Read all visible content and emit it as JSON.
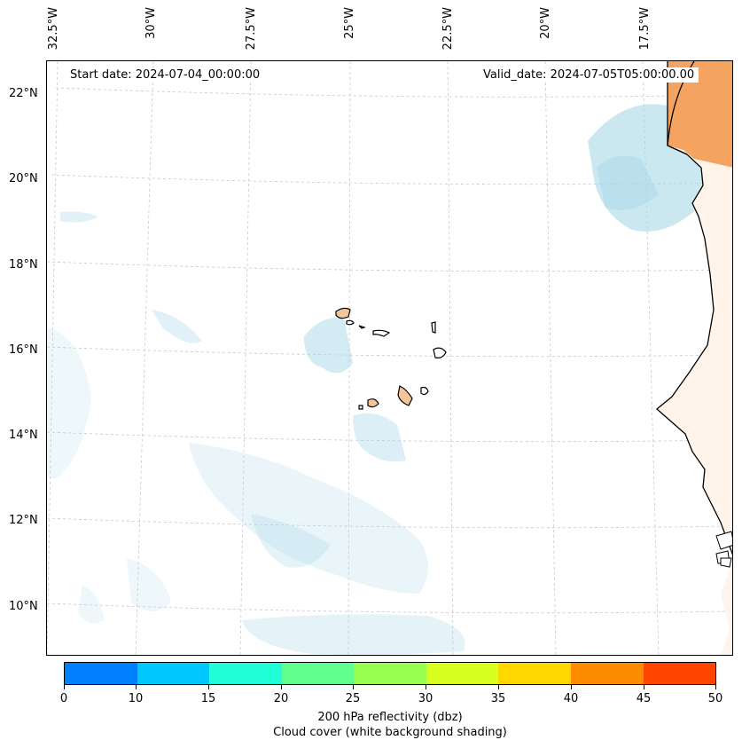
{
  "map": {
    "start_date": "Start date: 2024-07-04_00:00:00",
    "valid_date": "Valid_date: 2024-07-05T05:00:00.00",
    "lon_labels": [
      "32.5°W",
      "30°W",
      "27.5°W",
      "25°W",
      "22.5°W",
      "20°W",
      "17.5°W"
    ],
    "lat_labels": [
      "22°N",
      "20°N",
      "18°N",
      "16°N",
      "14°N",
      "12°N",
      "10°N"
    ],
    "gridlines": true,
    "coast_color": "#000000",
    "land_fill": "#f4a460",
    "cloud_color": "#a8d8e8"
  },
  "colorbar": {
    "title": "200 hPa reflectivity (dbz)",
    "subtitle": "Cloud cover (white background shading)",
    "ticks": [
      "0",
      "10",
      "15",
      "20",
      "25",
      "30",
      "35",
      "40",
      "45",
      "50"
    ],
    "colors": [
      "#0080ff",
      "#00c8ff",
      "#20ffd8",
      "#60ff90",
      "#98ff50",
      "#d8ff20",
      "#ffd700",
      "#ff8c00",
      "#ff4500"
    ]
  }
}
